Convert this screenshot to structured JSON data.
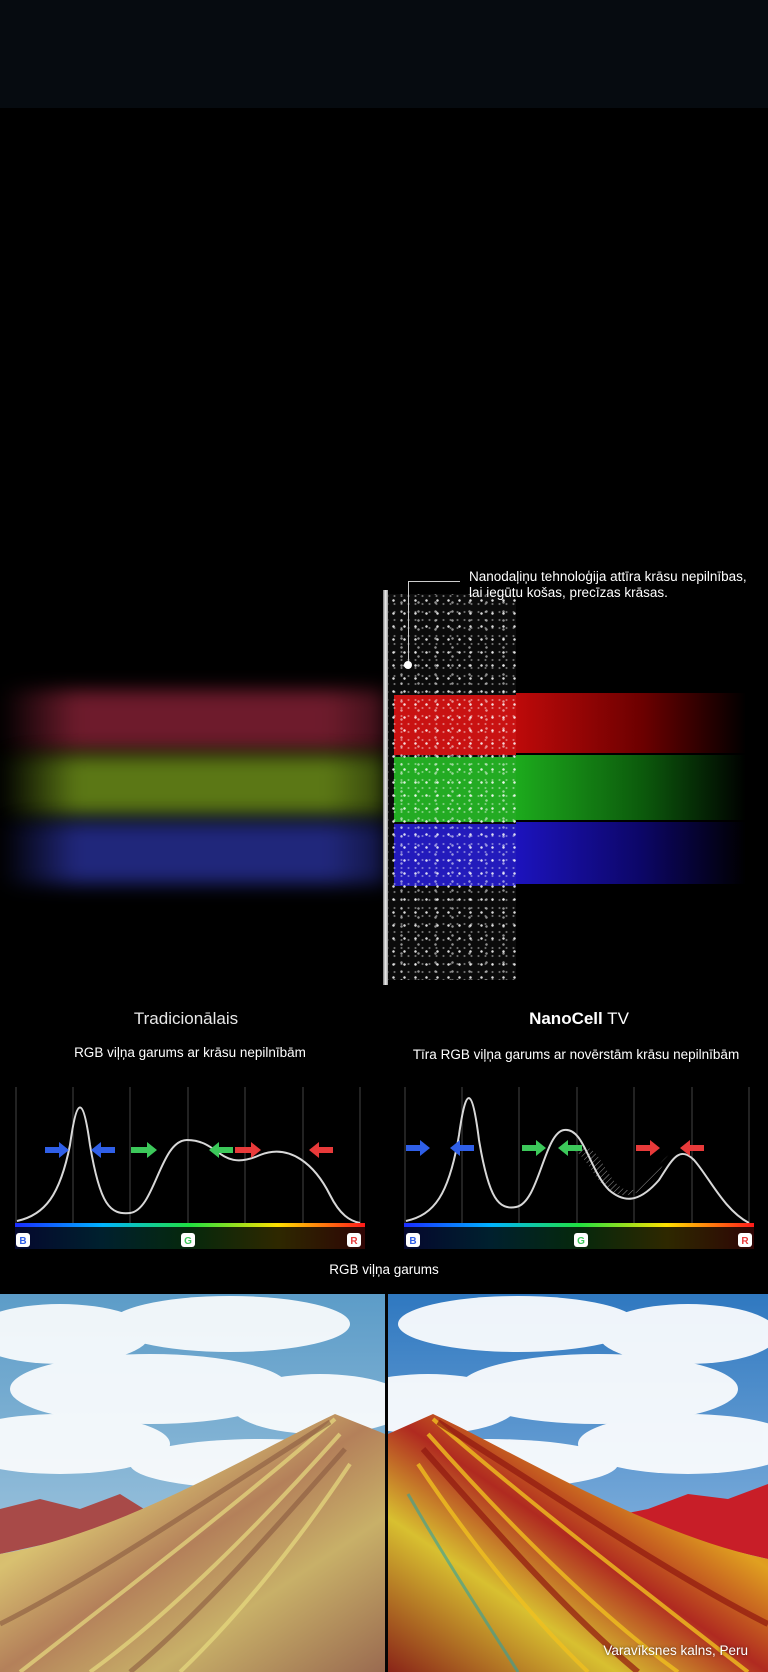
{
  "nano": {
    "callout": "Nanodaļiņu tehnoloģija attīra krāsu nepilnības, lai iegūtu košas, precīzas krāsas."
  },
  "comparison": {
    "left_title": "Tradicionālais",
    "left_subtitle": "RGB viļņa garums ar krāsu nepilnībām",
    "right_title_bold": "NanoCell",
    "right_title_rest": " TV",
    "right_subtitle": "Tīra RGB viļņa garums ar novērstām krāsu nepilnībām",
    "axis_labels": [
      "B",
      "G",
      "R"
    ],
    "axis_caption": "RGB viļņa garums"
  },
  "photo": {
    "caption": "Varavīksnes kalns, Peru"
  },
  "colors": {
    "blue": "#2f5fe8",
    "green": "#3cc85a",
    "red": "#e83a3a"
  }
}
